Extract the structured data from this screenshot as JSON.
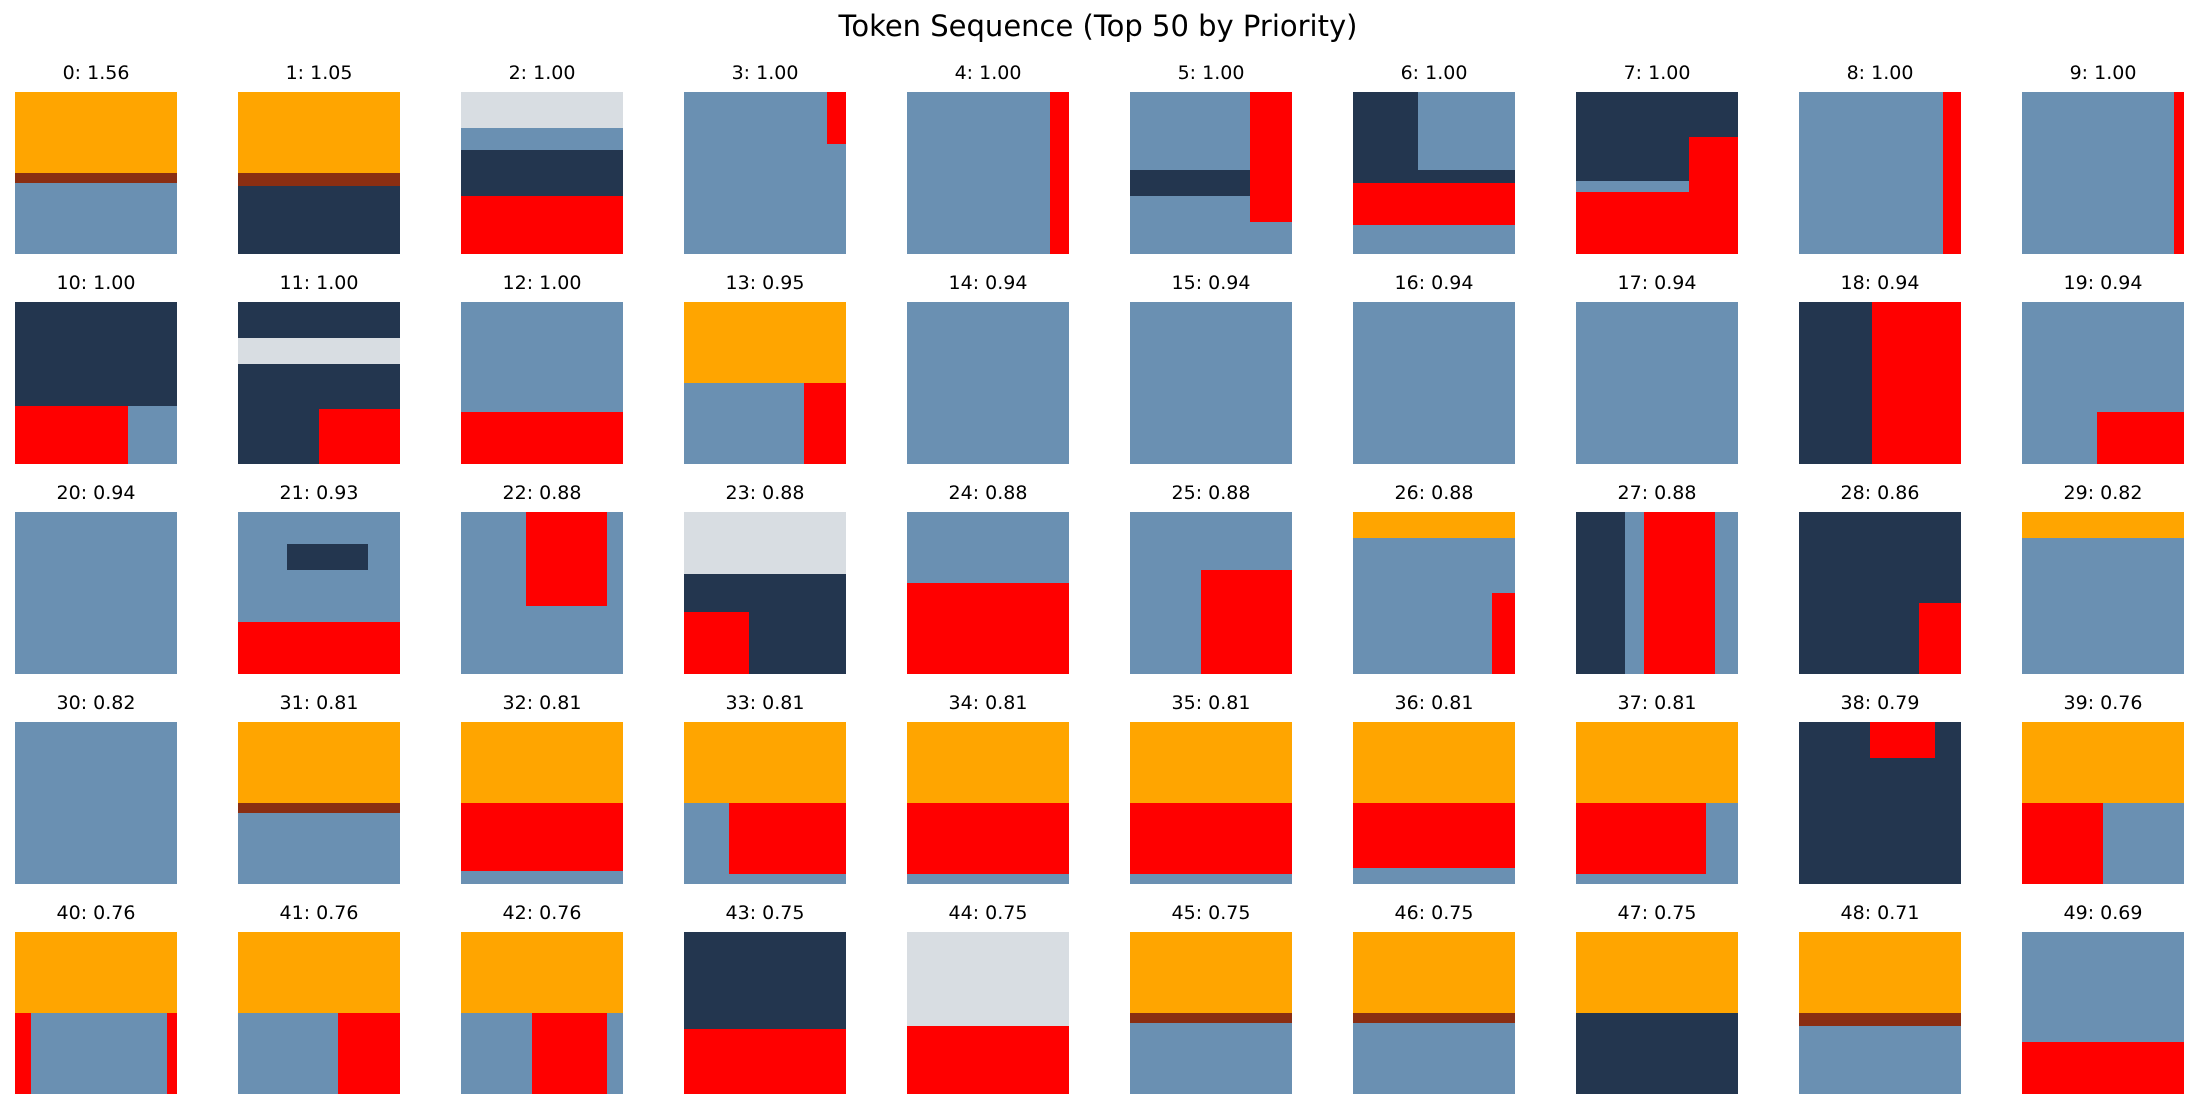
{
  "title": "Token Sequence (Top 50 by Priority)",
  "colors": {
    "orange": "#ffa500",
    "red": "#ff0000",
    "steel": "#6a90b2",
    "dark": "#23364f",
    "maroon": "#8a2e12",
    "light": "#d8dde2",
    "lightblue": "#6f9fcc"
  },
  "tokens": [
    {
      "label": "0: 1.56",
      "bg": "steel",
      "layers": [
        [
          0,
          0,
          100,
          50,
          "orange"
        ],
        [
          0,
          50,
          100,
          6,
          "maroon"
        ],
        [
          0,
          56,
          100,
          44,
          "steel"
        ]
      ]
    },
    {
      "label": "1: 1.05",
      "bg": "steel",
      "layers": [
        [
          0,
          0,
          100,
          50,
          "orange"
        ],
        [
          0,
          50,
          100,
          8,
          "maroon"
        ],
        [
          0,
          58,
          100,
          42,
          "dark"
        ]
      ]
    },
    {
      "label": "2: 1.00",
      "bg": "steel",
      "layers": [
        [
          0,
          0,
          100,
          22,
          "light"
        ],
        [
          0,
          22,
          100,
          14,
          "steel"
        ],
        [
          0,
          36,
          100,
          28,
          "dark"
        ],
        [
          0,
          64,
          100,
          36,
          "red"
        ]
      ]
    },
    {
      "label": "3: 1.00",
      "bg": "steel",
      "layers": [
        [
          88,
          0,
          12,
          32,
          "red"
        ]
      ]
    },
    {
      "label": "4: 1.00",
      "bg": "steel",
      "layers": [
        [
          88,
          0,
          12,
          100,
          "red"
        ]
      ]
    },
    {
      "label": "5: 1.00",
      "bg": "steel",
      "layers": [
        [
          74,
          0,
          26,
          80,
          "red"
        ],
        [
          0,
          48,
          74,
          16,
          "dark"
        ]
      ]
    },
    {
      "label": "6: 1.00",
      "bg": "steel",
      "layers": [
        [
          0,
          0,
          40,
          50,
          "dark"
        ],
        [
          0,
          56,
          100,
          26,
          "red"
        ],
        [
          0,
          48,
          100,
          8,
          "dark"
        ]
      ]
    },
    {
      "label": "7: 1.00",
      "bg": "steel",
      "layers": [
        [
          0,
          0,
          100,
          55,
          "dark"
        ],
        [
          70,
          28,
          30,
          72,
          "red"
        ],
        [
          0,
          62,
          100,
          38,
          "red"
        ]
      ]
    },
    {
      "label": "8: 1.00",
      "bg": "steel",
      "layers": [
        [
          89,
          0,
          11,
          100,
          "red"
        ]
      ]
    },
    {
      "label": "9: 1.00",
      "bg": "steel",
      "layers": [
        [
          94,
          0,
          6,
          100,
          "red"
        ]
      ]
    },
    {
      "label": "10: 1.00",
      "bg": "steel",
      "layers": [
        [
          0,
          0,
          100,
          64,
          "dark"
        ],
        [
          0,
          64,
          70,
          36,
          "red"
        ]
      ]
    },
    {
      "label": "11: 1.00",
      "bg": "steel",
      "layers": [
        [
          0,
          0,
          100,
          22,
          "dark"
        ],
        [
          0,
          22,
          100,
          16,
          "light"
        ],
        [
          0,
          38,
          100,
          62,
          "dark"
        ],
        [
          50,
          66,
          50,
          34,
          "red"
        ]
      ]
    },
    {
      "label": "12: 1.00",
      "bg": "steel",
      "layers": [
        [
          0,
          68,
          100,
          32,
          "red"
        ]
      ]
    },
    {
      "label": "13: 0.95",
      "bg": "steel",
      "layers": [
        [
          0,
          0,
          100,
          50,
          "orange"
        ],
        [
          74,
          50,
          26,
          50,
          "red"
        ]
      ]
    },
    {
      "label": "14: 0.94",
      "bg": "steel",
      "layers": []
    },
    {
      "label": "15: 0.94",
      "bg": "steel",
      "layers": []
    },
    {
      "label": "16: 0.94",
      "bg": "steel",
      "layers": []
    },
    {
      "label": "17: 0.94",
      "bg": "steel",
      "layers": []
    },
    {
      "label": "18: 0.94",
      "bg": "steel",
      "layers": [
        [
          0,
          0,
          45,
          100,
          "dark"
        ],
        [
          45,
          0,
          55,
          100,
          "red"
        ]
      ]
    },
    {
      "label": "19: 0.94",
      "bg": "steel",
      "layers": [
        [
          46,
          68,
          54,
          32,
          "red"
        ]
      ]
    },
    {
      "label": "20: 0.94",
      "bg": "steel",
      "layers": []
    },
    {
      "label": "21: 0.93",
      "bg": "steel",
      "layers": [
        [
          30,
          20,
          50,
          16,
          "dark"
        ],
        [
          0,
          68,
          100,
          32,
          "red"
        ]
      ]
    },
    {
      "label": "22: 0.88",
      "bg": "steel",
      "layers": [
        [
          40,
          0,
          50,
          58,
          "red"
        ]
      ]
    },
    {
      "label": "23: 0.88",
      "bg": "steel",
      "layers": [
        [
          0,
          0,
          100,
          38,
          "light"
        ],
        [
          0,
          38,
          100,
          62,
          "dark"
        ],
        [
          0,
          62,
          40,
          38,
          "red"
        ]
      ]
    },
    {
      "label": "24: 0.88",
      "bg": "steel",
      "layers": [
        [
          0,
          44,
          100,
          56,
          "red"
        ]
      ]
    },
    {
      "label": "25: 0.88",
      "bg": "steel",
      "layers": [
        [
          44,
          36,
          56,
          64,
          "red"
        ]
      ]
    },
    {
      "label": "26: 0.88",
      "bg": "steel",
      "layers": [
        [
          0,
          0,
          100,
          16,
          "orange"
        ],
        [
          86,
          50,
          14,
          50,
          "red"
        ]
      ]
    },
    {
      "label": "27: 0.88",
      "bg": "steel",
      "layers": [
        [
          42,
          0,
          44,
          100,
          "red"
        ],
        [
          0,
          0,
          30,
          100,
          "dark"
        ]
      ]
    },
    {
      "label": "28: 0.86",
      "bg": "steel",
      "layers": [
        [
          0,
          0,
          100,
          100,
          "dark"
        ],
        [
          74,
          56,
          26,
          44,
          "red"
        ]
      ]
    },
    {
      "label": "29: 0.82",
      "bg": "steel",
      "layers": [
        [
          0,
          0,
          100,
          16,
          "orange"
        ]
      ]
    },
    {
      "label": "30: 0.82",
      "bg": "steel",
      "layers": []
    },
    {
      "label": "31: 0.81",
      "bg": "steel",
      "layers": [
        [
          0,
          0,
          100,
          50,
          "orange"
        ],
        [
          0,
          50,
          100,
          6,
          "maroon"
        ]
      ]
    },
    {
      "label": "32: 0.81",
      "bg": "steel",
      "layers": [
        [
          0,
          0,
          100,
          50,
          "orange"
        ],
        [
          0,
          50,
          100,
          42,
          "red"
        ]
      ]
    },
    {
      "label": "33: 0.81",
      "bg": "steel",
      "layers": [
        [
          0,
          0,
          100,
          50,
          "orange"
        ],
        [
          28,
          50,
          72,
          44,
          "red"
        ]
      ]
    },
    {
      "label": "34: 0.81",
      "bg": "steel",
      "layers": [
        [
          0,
          0,
          100,
          50,
          "orange"
        ],
        [
          0,
          50,
          100,
          44,
          "red"
        ]
      ]
    },
    {
      "label": "35: 0.81",
      "bg": "steel",
      "layers": [
        [
          0,
          0,
          100,
          50,
          "orange"
        ],
        [
          0,
          50,
          100,
          44,
          "red"
        ]
      ]
    },
    {
      "label": "36: 0.81",
      "bg": "steel",
      "layers": [
        [
          0,
          0,
          100,
          50,
          "orange"
        ],
        [
          0,
          50,
          100,
          40,
          "red"
        ]
      ]
    },
    {
      "label": "37: 0.81",
      "bg": "steel",
      "layers": [
        [
          0,
          0,
          100,
          50,
          "orange"
        ],
        [
          0,
          50,
          80,
          44,
          "red"
        ]
      ]
    },
    {
      "label": "38: 0.79",
      "bg": "steel",
      "layers": [
        [
          0,
          0,
          100,
          100,
          "dark"
        ],
        [
          44,
          0,
          40,
          22,
          "red"
        ]
      ]
    },
    {
      "label": "39: 0.76",
      "bg": "steel",
      "layers": [
        [
          0,
          0,
          100,
          50,
          "orange"
        ],
        [
          0,
          50,
          50,
          50,
          "red"
        ]
      ]
    },
    {
      "label": "40: 0.76",
      "bg": "steel",
      "layers": [
        [
          0,
          0,
          100,
          50,
          "orange"
        ],
        [
          0,
          50,
          10,
          50,
          "red"
        ],
        [
          94,
          50,
          6,
          50,
          "red"
        ]
      ]
    },
    {
      "label": "41: 0.76",
      "bg": "steel",
      "layers": [
        [
          0,
          0,
          100,
          50,
          "orange"
        ],
        [
          62,
          50,
          38,
          50,
          "red"
        ]
      ]
    },
    {
      "label": "42: 0.76",
      "bg": "steel",
      "layers": [
        [
          0,
          0,
          100,
          50,
          "orange"
        ],
        [
          44,
          50,
          46,
          50,
          "red"
        ]
      ]
    },
    {
      "label": "43: 0.75",
      "bg": "steel",
      "layers": [
        [
          0,
          0,
          100,
          60,
          "dark"
        ],
        [
          0,
          60,
          100,
          40,
          "red"
        ]
      ]
    },
    {
      "label": "44: 0.75",
      "bg": "steel",
      "layers": [
        [
          0,
          0,
          100,
          58,
          "light"
        ],
        [
          0,
          58,
          100,
          42,
          "red"
        ]
      ]
    },
    {
      "label": "45: 0.75",
      "bg": "steel",
      "layers": [
        [
          0,
          0,
          100,
          50,
          "orange"
        ],
        [
          0,
          50,
          100,
          6,
          "maroon"
        ]
      ]
    },
    {
      "label": "46: 0.75",
      "bg": "steel",
      "layers": [
        [
          0,
          0,
          100,
          50,
          "orange"
        ],
        [
          0,
          50,
          100,
          6,
          "maroon"
        ]
      ]
    },
    {
      "label": "47: 0.75",
      "bg": "steel",
      "layers": [
        [
          0,
          0,
          100,
          50,
          "orange"
        ],
        [
          0,
          50,
          100,
          50,
          "dark"
        ]
      ]
    },
    {
      "label": "48: 0.71",
      "bg": "steel",
      "layers": [
        [
          0,
          0,
          100,
          50,
          "orange"
        ],
        [
          0,
          50,
          100,
          8,
          "maroon"
        ]
      ]
    },
    {
      "label": "49: 0.69",
      "bg": "steel",
      "layers": [
        [
          0,
          68,
          100,
          32,
          "red"
        ]
      ]
    }
  ]
}
